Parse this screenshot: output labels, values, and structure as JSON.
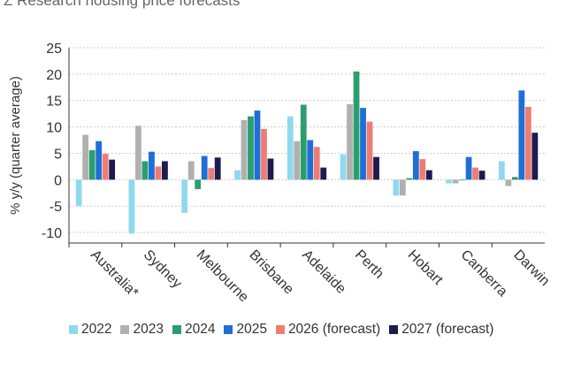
{
  "chart_data": {
    "type": "bar",
    "title": "Z Research housing price forecasts",
    "ylabel": "% y/y (quarter average)",
    "xlabel": "",
    "ylim": [
      -12,
      25
    ],
    "yticks": [
      -10,
      -5,
      0,
      5,
      10,
      15,
      20,
      25
    ],
    "grid": true,
    "legend_position": "bottom",
    "categories": [
      "Australia*",
      "Sydney",
      "Melbourne",
      "Brisbane",
      "Adelaide",
      "Perth",
      "Hobart",
      "Canberra",
      "Darwin"
    ],
    "series": [
      {
        "name": "2022",
        "color": "#8fd9ef",
        "values": [
          -5.0,
          -10.2,
          -6.3,
          1.8,
          12.0,
          4.8,
          -3.0,
          -0.7,
          3.5
        ]
      },
      {
        "name": "2023",
        "color": "#b0b0b0",
        "values": [
          8.5,
          10.2,
          3.5,
          11.3,
          7.3,
          14.3,
          -3.0,
          -0.7,
          -1.2
        ]
      },
      {
        "name": "2024",
        "color": "#2b9e6e",
        "values": [
          5.6,
          3.5,
          -1.8,
          12.0,
          14.2,
          20.5,
          0.3,
          0.0,
          0.5
        ]
      },
      {
        "name": "2025",
        "color": "#1f6fd6",
        "values": [
          7.3,
          5.3,
          4.5,
          13.1,
          7.5,
          13.6,
          5.4,
          4.3,
          16.9
        ]
      },
      {
        "name": "2026 (forecast)",
        "color": "#ef7c74",
        "values": [
          4.9,
          2.5,
          2.2,
          9.6,
          6.2,
          11.0,
          3.9,
          2.3,
          13.8
        ]
      },
      {
        "name": "2027 (forecast)",
        "color": "#1c1c4e",
        "values": [
          3.8,
          3.5,
          4.2,
          4.0,
          2.3,
          4.3,
          1.8,
          1.7,
          8.9
        ]
      }
    ]
  }
}
